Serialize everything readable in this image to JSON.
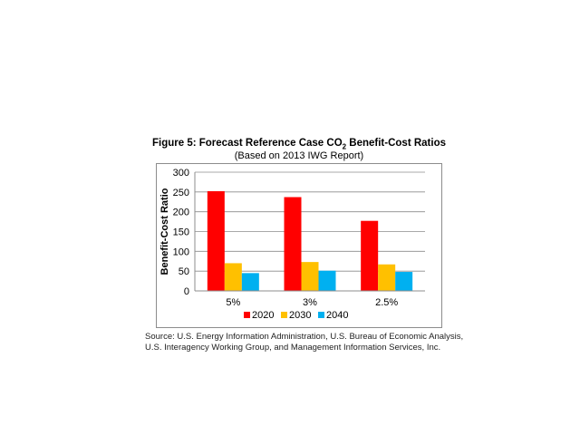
{
  "chart_data": {
    "type": "bar",
    "title_prefix": "Figure 5:  Forecast Reference Case CO",
    "title_sub": "2",
    "title_suffix": " Benefit-Cost Ratios",
    "subtitle": "(Based on 2013 IWG Report)",
    "xlabel": "",
    "ylabel": "Benefit-Cost Ratio",
    "ylim": [
      0,
      300
    ],
    "yticks": [
      "0",
      "50",
      "100",
      "150",
      "200",
      "250",
      "300"
    ],
    "grid": true,
    "legend_placement": "bottom",
    "categories": [
      "5%",
      "3%",
      "2.5%"
    ],
    "series": [
      {
        "name": "2020",
        "color": "#ff0000",
        "values": [
          252,
          237,
          177
        ]
      },
      {
        "name": "2030",
        "color": "#ffc000",
        "values": [
          70,
          73,
          67
        ]
      },
      {
        "name": "2040",
        "color": "#00b0f0",
        "values": [
          45,
          51,
          48
        ]
      }
    ]
  },
  "source": {
    "line1": "Source:  U.S. Energy Information Administration, U.S. Bureau of Economic Analysis,",
    "line2": "U.S. Interagency Working Group, and Management Information Services, Inc."
  }
}
